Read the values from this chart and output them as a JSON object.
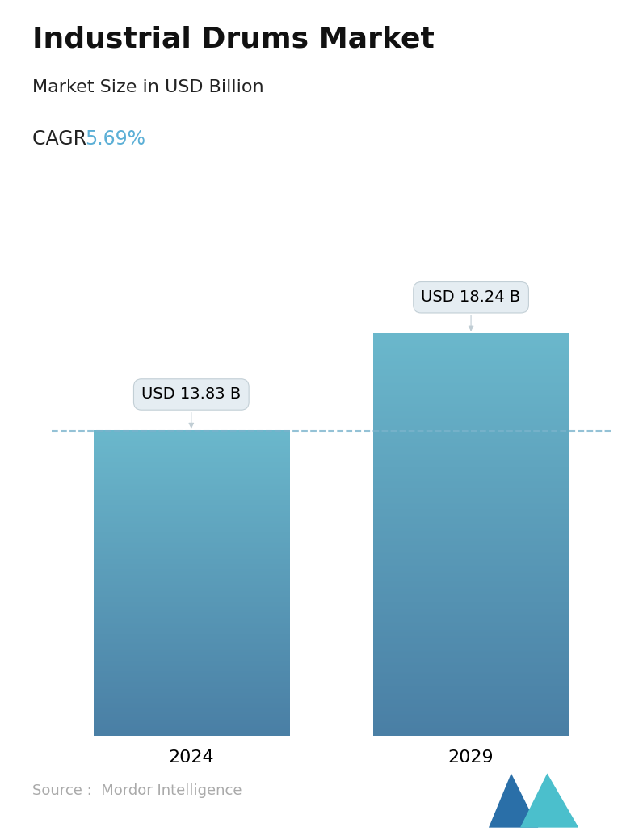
{
  "title": "Industrial Drums Market",
  "subtitle": "Market Size in USD Billion",
  "cagr_label": "CAGR",
  "cagr_value": "5.69%",
  "cagr_color": "#5bafd6",
  "categories": [
    "2024",
    "2029"
  ],
  "values": [
    13.83,
    18.24
  ],
  "label_texts": [
    "USD 13.83 B",
    "USD 18.24 B"
  ],
  "bar_color_top": "#6bb8cc",
  "bar_color_bottom": "#4a7fa5",
  "dashed_line_color": "#7ab3cc",
  "dashed_line_value": 13.83,
  "source_text": "Source :  Mordor Intelligence",
  "source_color": "#aaaaaa",
  "background_color": "#ffffff",
  "title_fontsize": 26,
  "subtitle_fontsize": 16,
  "cagr_fontsize": 17,
  "bar_label_fontsize": 14,
  "tick_fontsize": 16,
  "source_fontsize": 13,
  "ylim": [
    0,
    22
  ],
  "bar_width": 0.35,
  "x_positions": [
    0.25,
    0.75
  ]
}
